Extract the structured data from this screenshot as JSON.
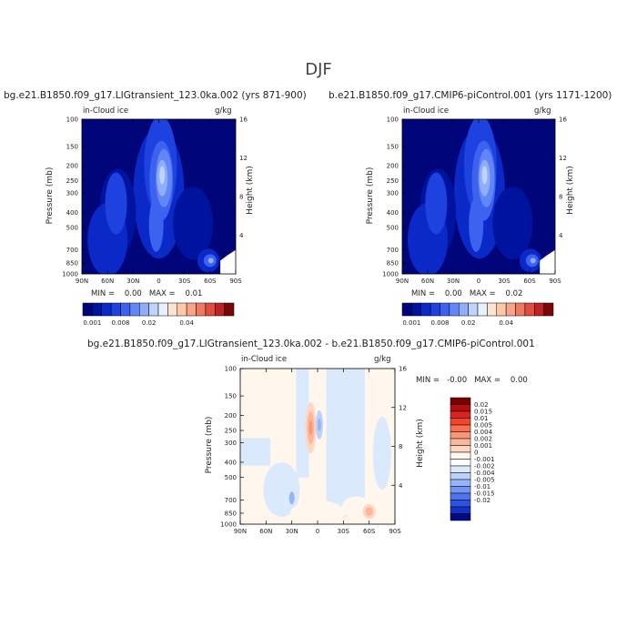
{
  "figure": {
    "season": "DJF"
  },
  "panels": [
    {
      "title": "bg.e21.B1850.f09_g17.LIGtransient_123.0ka.002 (yrs 871-900)",
      "variable": "in-Cloud ice",
      "units": "g/kg",
      "ylabel": "Pressure (mb)",
      "ylabel_right": "Height (km)",
      "stats_text": "MIN =    0.00   MAX =    0.01",
      "min": 0.0,
      "max": 0.01
    },
    {
      "title": "b.e21.B1850.f09_g17.CMIP6-piControl.001 (yrs 1171-1200)",
      "variable": "in-Cloud ice",
      "units": "g/kg",
      "ylabel": "Pressure (mb)",
      "ylabel_right": "Height (km)",
      "stats_text": "MIN =    0.00   MAX =    0.02",
      "min": 0.0,
      "max": 0.02
    },
    {
      "title": "bg.e21.B1850.f09_g17.LIGtransient_123.0ka.002 - b.e21.B1850.f09_g17.CMIP6-piControl.001",
      "variable": "in-Cloud ice",
      "units": "g/kg",
      "ylabel": "Pressure (mb)",
      "ylabel_right": "Height (km)",
      "stats_text": "MIN =   -0.00   MAX =    0.00",
      "min": -0.0,
      "max": 0.0
    }
  ],
  "axes": {
    "x_ticks": [
      "90N",
      "60N",
      "30N",
      "0",
      "30S",
      "60S",
      "90S"
    ],
    "x_values": [
      90,
      60,
      30,
      0,
      -30,
      -60,
      -90
    ],
    "p_ticks": [
      "100",
      "150",
      "200",
      "250",
      "300",
      "400",
      "500",
      "700",
      "850",
      "1000"
    ],
    "p_values": [
      100,
      150,
      200,
      250,
      300,
      400,
      500,
      700,
      850,
      1000
    ],
    "z_ticks": [
      "4",
      "8",
      "12",
      "16"
    ],
    "z_values": [
      4,
      8,
      12,
      16
    ],
    "y_scale": "log-pressure"
  },
  "colorbars": {
    "abs": {
      "colors": [
        "#00067a",
        "#00139f",
        "#0b29c7",
        "#1d42e0",
        "#3d62ef",
        "#6386f7",
        "#8fadf9",
        "#bed4fb",
        "#e8f0fe",
        "#fce4d0",
        "#fbc8a8",
        "#f8a486",
        "#ee7a62",
        "#de4d3e",
        "#be2323",
        "#7a0606"
      ],
      "labels": [
        "0.001",
        "0.008",
        "0.02",
        "0.04"
      ]
    },
    "diff": {
      "colors": [
        "#7a0000",
        "#b40d0d",
        "#dc2323",
        "#f1462b",
        "#fb7050",
        "#fa967a",
        "#fbb79b",
        "#fdd7c0",
        "#fff6ee",
        "#ffffff",
        "#dbe9fc",
        "#bcd2fb",
        "#97b4f8",
        "#7396f4",
        "#4d73ee",
        "#2c52e2",
        "#1431c2",
        "#020b86"
      ],
      "labels": [
        "0.02",
        "0.015",
        "0.01",
        "0.005",
        "0.004",
        "0.002",
        "0.001",
        "0",
        "-0.001",
        "-0.002",
        "-0.004",
        "-0.005",
        "-0.01",
        "-0.015",
        "-0.02"
      ]
    }
  },
  "chart_data": [
    {
      "type": "heatmap",
      "title": "bg.e21.B1850.f09_g17.LIGtransient_123.0ka.002 (yrs 871-900)",
      "subtitle": "in-Cloud ice",
      "units": "g/kg",
      "x": [
        "90N",
        "60N",
        "30N",
        "0",
        "30S",
        "60S",
        "90S"
      ],
      "y": [
        100,
        150,
        200,
        250,
        300,
        400,
        500,
        700,
        850,
        1000
      ],
      "xlabel": "",
      "ylabel": "Pressure (mb)",
      "min": 0.0,
      "max": 0.01,
      "features": [
        {
          "lat": -3,
          "p": 250,
          "value": 0.008
        },
        {
          "lat": 2,
          "p": 500,
          "value": 0.004
        },
        {
          "lat": 50,
          "p": 350,
          "value": 0.002
        },
        {
          "lat": -58,
          "p": 820,
          "value": 0.004
        }
      ]
    },
    {
      "type": "heatmap",
      "title": "b.e21.B1850.f09_g17.CMIP6-piControl.001 (yrs 1171-1200)",
      "subtitle": "in-Cloud ice",
      "units": "g/kg",
      "x": [
        "90N",
        "60N",
        "30N",
        "0",
        "30S",
        "60S",
        "90S"
      ],
      "y": [
        100,
        150,
        200,
        250,
        300,
        400,
        500,
        700,
        850,
        1000
      ],
      "xlabel": "",
      "ylabel": "Pressure (mb)",
      "min": 0.0,
      "max": 0.02,
      "features": [
        {
          "lat": 0,
          "p": 240,
          "value": 0.008
        },
        {
          "lat": 2,
          "p": 500,
          "value": 0.004
        },
        {
          "lat": 50,
          "p": 350,
          "value": 0.002
        },
        {
          "lat": -60,
          "p": 820,
          "value": 0.004
        }
      ]
    },
    {
      "type": "heatmap",
      "title": "bg.e21.B1850.f09_g17.LIGtransient_123.0ka.002 - b.e21.B1850.f09_g17.CMIP6-piControl.001",
      "subtitle": "in-Cloud ice",
      "units": "g/kg",
      "x": [
        "90N",
        "60N",
        "30N",
        "0",
        "30S",
        "60S",
        "90S"
      ],
      "y": [
        100,
        150,
        200,
        250,
        300,
        400,
        500,
        700,
        850,
        1000
      ],
      "xlabel": "",
      "ylabel": "Pressure (mb)",
      "min": -0.0,
      "max": 0.0,
      "features": [
        {
          "lat": 8,
          "p": 240,
          "value": 0.001
        },
        {
          "lat": -2,
          "p": 240,
          "value": -0.001
        },
        {
          "lat": -60,
          "p": 830,
          "value": 0.001
        },
        {
          "lat": 30,
          "p": 680,
          "value": -0.001
        }
      ]
    }
  ]
}
